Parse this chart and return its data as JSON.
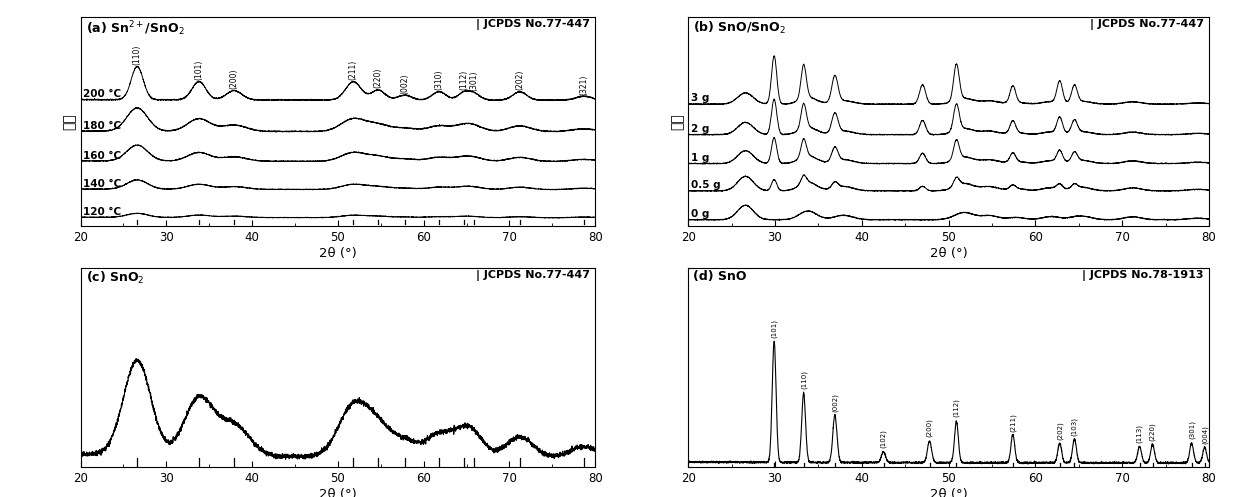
{
  "fig_width": 12.4,
  "fig_height": 4.97,
  "bg_color": "#ffffff",
  "panel_a": {
    "title": "(a) Sn$^{2+}$/SnO$_2$",
    "jcpds": "| JCPDS No.77-447",
    "xlabel": "2θ (°)",
    "ylabel": "强度",
    "xlim": [
      20,
      80
    ],
    "labels": [
      "200 °C",
      "180 °C",
      "160 °C",
      "140 °C",
      "120 °C"
    ],
    "offsets": [
      3.8,
      2.85,
      1.95,
      1.1,
      0.25
    ],
    "peak_positions": [
      26.6,
      33.8,
      37.9,
      51.8,
      54.7,
      57.8,
      61.8,
      64.7,
      65.9,
      71.2,
      78.7
    ],
    "peak_labels": [
      "(110)",
      "(101)",
      "(200)",
      "(211)",
      "(220)",
      "(002)",
      "(310)",
      "(112)",
      "(301)",
      "(202)",
      "(321)"
    ],
    "ref_lines": [
      26.6,
      33.8,
      37.9,
      51.8,
      54.7,
      57.8,
      61.8,
      64.7,
      65.9,
      71.2,
      78.7
    ]
  },
  "panel_b": {
    "title": "(b) SnO/SnO$_2$",
    "jcpds": "| JCPDS No.77-447",
    "xlabel": "2θ (°)",
    "ylabel": "强度",
    "xlim": [
      20,
      80
    ],
    "labels": [
      "3 g",
      "2 g",
      "1 g",
      "0.5 g",
      "0 g"
    ],
    "offsets": [
      3.8,
      2.85,
      1.95,
      1.1,
      0.2
    ]
  },
  "panel_c": {
    "title": "(c) SnO$_2$",
    "jcpds": "| JCPDS No.77-447",
    "xlabel": "2θ (°)",
    "xlim": [
      20,
      80
    ],
    "peak_positions": [
      26.6,
      33.8,
      37.9,
      51.8,
      54.7,
      57.8,
      61.8,
      64.7,
      65.9,
      71.2,
      78.7
    ],
    "ref_lines": [
      26.6,
      33.8,
      37.9,
      51.8,
      54.7,
      57.8,
      61.8,
      64.7,
      65.9,
      71.2,
      78.7
    ]
  },
  "panel_d": {
    "title": "(d) SnO",
    "jcpds": "| JCPDS No.78-1913",
    "xlabel": "2θ (°)",
    "xlim": [
      20,
      80
    ],
    "peak_labels": [
      "(101)",
      "(110)",
      "(002)",
      "(102)",
      "(200)",
      "(112)",
      "(211)",
      "(202)",
      "(103)",
      "(113)",
      "(220)",
      "(301)",
      "(004)"
    ],
    "peak_pos_labeled": [
      29.9,
      33.3,
      36.9,
      42.5,
      47.8,
      50.9,
      57.4,
      62.8,
      64.5,
      72.0,
      73.5,
      78.0,
      79.5
    ],
    "ref_lines": [
      29.9,
      33.3,
      36.9,
      42.5,
      47.8,
      50.9,
      57.4,
      62.8,
      64.5,
      72.0,
      73.5,
      78.0,
      79.5
    ]
  }
}
